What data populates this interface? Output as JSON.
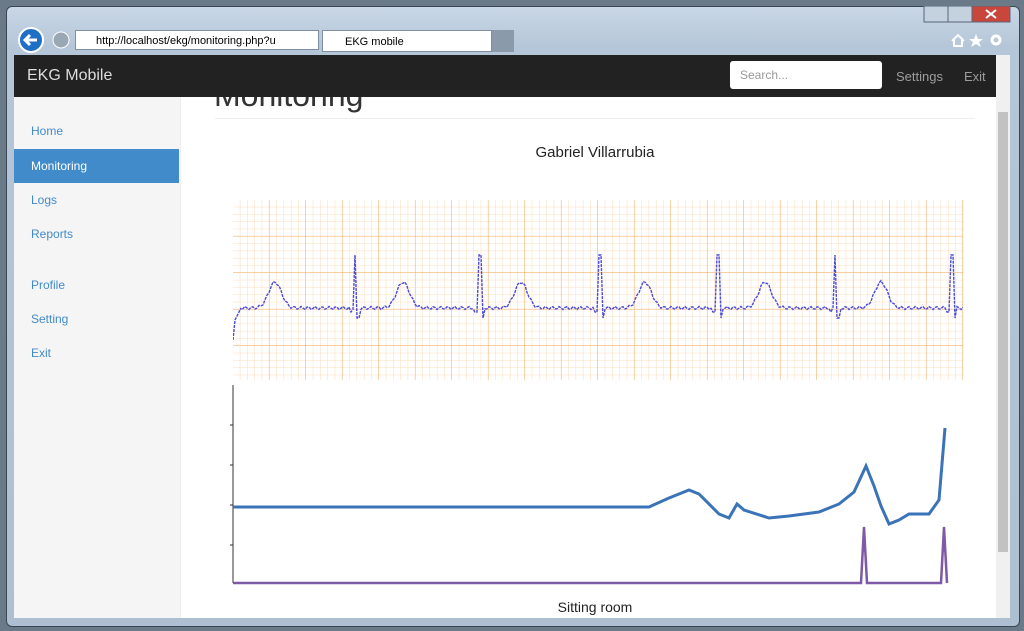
{
  "browser": {
    "url": "http://localhost/ekg/monitoring.php?u",
    "tab": "EKG mobile"
  },
  "navbar": {
    "brand": "EKG Mobile",
    "search_placeholder": "Search...",
    "links": [
      "Settings",
      "Exit"
    ]
  },
  "sidebar": {
    "items": [
      "Home",
      "Monitoring",
      "Logs",
      "Reports",
      "Profile",
      "Setting",
      "Exit"
    ],
    "active": 1
  },
  "content": {
    "heading": "Monitoring",
    "patient": "Gabriel Villarrubia",
    "room": "Sitting room"
  }
}
